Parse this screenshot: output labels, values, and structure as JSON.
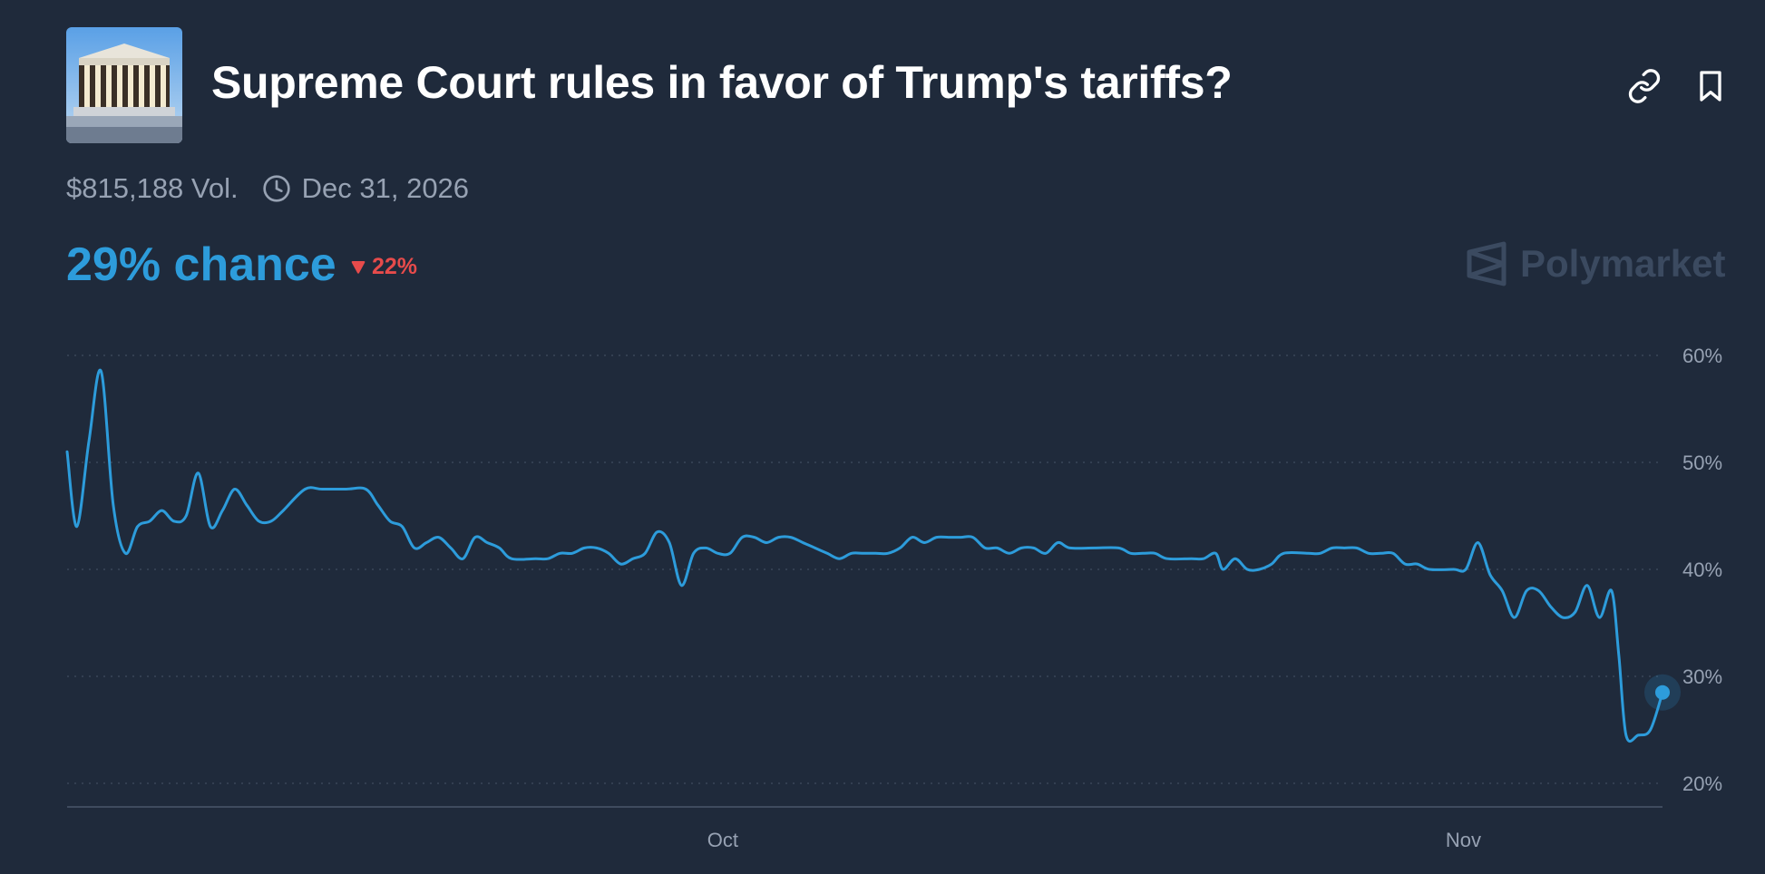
{
  "header": {
    "title": "Supreme Court rules in favor of Trump's tariffs?",
    "thumbnail_icon": "supreme-court-building-icon",
    "actions": [
      {
        "icon": "link-icon"
      },
      {
        "icon": "bookmark-icon"
      }
    ]
  },
  "meta": {
    "volume": "$815,188 Vol.",
    "end_date": "Dec 31, 2026",
    "end_date_icon": "clock-icon"
  },
  "summary": {
    "chance": "29% chance",
    "change": "22%",
    "change_direction": "down",
    "change_color": "#e64b4b",
    "accent_color": "#2d9cdb"
  },
  "brand": {
    "name": "Polymarket"
  },
  "chart_data": {
    "type": "line",
    "title": "",
    "xlabel": "",
    "ylabel": "",
    "ylim": [
      20,
      60
    ],
    "yticks": [
      20,
      30,
      40,
      50,
      60
    ],
    "ytick_labels": [
      "20%",
      "30%",
      "40%",
      "50%",
      "60%"
    ],
    "x_range_days": [
      0,
      64
    ],
    "xtick_positions": [
      27,
      57.5
    ],
    "xtick_labels": [
      "Oct",
      "Nov"
    ],
    "grid": true,
    "legend": "none",
    "series": [
      {
        "color": "#2d9cdb",
        "points": [
          [
            0,
            51
          ],
          [
            0.4,
            44
          ],
          [
            0.9,
            52
          ],
          [
            1.4,
            58.5
          ],
          [
            1.9,
            46
          ],
          [
            2.4,
            41.5
          ],
          [
            2.9,
            44
          ],
          [
            3.4,
            44.5
          ],
          [
            3.9,
            45.5
          ],
          [
            4.4,
            44.5
          ],
          [
            4.9,
            45
          ],
          [
            5.4,
            49
          ],
          [
            5.9,
            44
          ],
          [
            6.4,
            45.5
          ],
          [
            6.9,
            47.5
          ],
          [
            7.4,
            46
          ],
          [
            7.9,
            44.5
          ],
          [
            8.4,
            44.5
          ],
          [
            8.9,
            45.5
          ],
          [
            9.8,
            47.5
          ],
          [
            10.5,
            47.5
          ],
          [
            11.5,
            47.5
          ],
          [
            12.3,
            47.5
          ],
          [
            12.8,
            46
          ],
          [
            13.3,
            44.5
          ],
          [
            13.8,
            44
          ],
          [
            14.3,
            42
          ],
          [
            14.8,
            42.5
          ],
          [
            15.3,
            43
          ],
          [
            15.8,
            42
          ],
          [
            16.3,
            41
          ],
          [
            16.8,
            43
          ],
          [
            17.3,
            42.5
          ],
          [
            17.8,
            42
          ],
          [
            18.3,
            41
          ],
          [
            19.3,
            41
          ],
          [
            19.8,
            41
          ],
          [
            20.3,
            41.5
          ],
          [
            20.8,
            41.5
          ],
          [
            21.3,
            42
          ],
          [
            21.8,
            42
          ],
          [
            22.3,
            41.5
          ],
          [
            22.8,
            40.5
          ],
          [
            23.3,
            41
          ],
          [
            23.8,
            41.5
          ],
          [
            24.3,
            43.5
          ],
          [
            24.8,
            42.5
          ],
          [
            25.3,
            38.5
          ],
          [
            25.8,
            41.5
          ],
          [
            26.3,
            42
          ],
          [
            26.8,
            41.5
          ],
          [
            27.3,
            41.5
          ],
          [
            27.8,
            43
          ],
          [
            28.3,
            43
          ],
          [
            28.8,
            42.5
          ],
          [
            29.3,
            43
          ],
          [
            29.8,
            43
          ],
          [
            30.3,
            42.5
          ],
          [
            30.8,
            42
          ],
          [
            31.3,
            41.5
          ],
          [
            31.8,
            41
          ],
          [
            32.3,
            41.5
          ],
          [
            32.8,
            41.5
          ],
          [
            33.3,
            41.5
          ],
          [
            33.8,
            41.5
          ],
          [
            34.3,
            42
          ],
          [
            34.8,
            43
          ],
          [
            35.3,
            42.5
          ],
          [
            35.8,
            43
          ],
          [
            36.3,
            43
          ],
          [
            36.8,
            43
          ],
          [
            37.3,
            43
          ],
          [
            37.8,
            42
          ],
          [
            38.3,
            42
          ],
          [
            38.8,
            41.5
          ],
          [
            39.3,
            42
          ],
          [
            39.8,
            42
          ],
          [
            40.3,
            41.5
          ],
          [
            40.8,
            42.5
          ],
          [
            41.3,
            42
          ],
          [
            42.3,
            42
          ],
          [
            43.3,
            42
          ],
          [
            43.8,
            41.5
          ],
          [
            44.3,
            41.5
          ],
          [
            44.8,
            41.5
          ],
          [
            45.3,
            41
          ],
          [
            46.3,
            41
          ],
          [
            46.8,
            41
          ],
          [
            47.3,
            41.5
          ],
          [
            47.6,
            40
          ],
          [
            48.1,
            41
          ],
          [
            48.6,
            40
          ],
          [
            49.1,
            40
          ],
          [
            49.6,
            40.5
          ],
          [
            50.1,
            41.5
          ],
          [
            51.1,
            41.5
          ],
          [
            51.6,
            41.5
          ],
          [
            52.1,
            42
          ],
          [
            52.6,
            42
          ],
          [
            53.1,
            42
          ],
          [
            53.6,
            41.5
          ],
          [
            54.1,
            41.5
          ],
          [
            54.6,
            41.5
          ],
          [
            55.1,
            40.5
          ],
          [
            55.6,
            40.5
          ],
          [
            56.1,
            40
          ],
          [
            57.1,
            40
          ],
          [
            57.6,
            40
          ],
          [
            58.1,
            42.5
          ],
          [
            58.6,
            39.5
          ],
          [
            59.1,
            38
          ],
          [
            59.6,
            35.5
          ],
          [
            60.1,
            38
          ],
          [
            60.6,
            38
          ],
          [
            61.1,
            36.5
          ],
          [
            61.6,
            35.5
          ],
          [
            62.1,
            36
          ],
          [
            62.6,
            38.5
          ],
          [
            63.1,
            35.5
          ],
          [
            63.6,
            38
          ],
          [
            63.9,
            32
          ],
          [
            64.2,
            24.5
          ],
          [
            64.7,
            24.5
          ],
          [
            65.2,
            25
          ],
          [
            65.7,
            28.5
          ]
        ]
      }
    ],
    "end_point": [
      65.7,
      28.5
    ]
  }
}
